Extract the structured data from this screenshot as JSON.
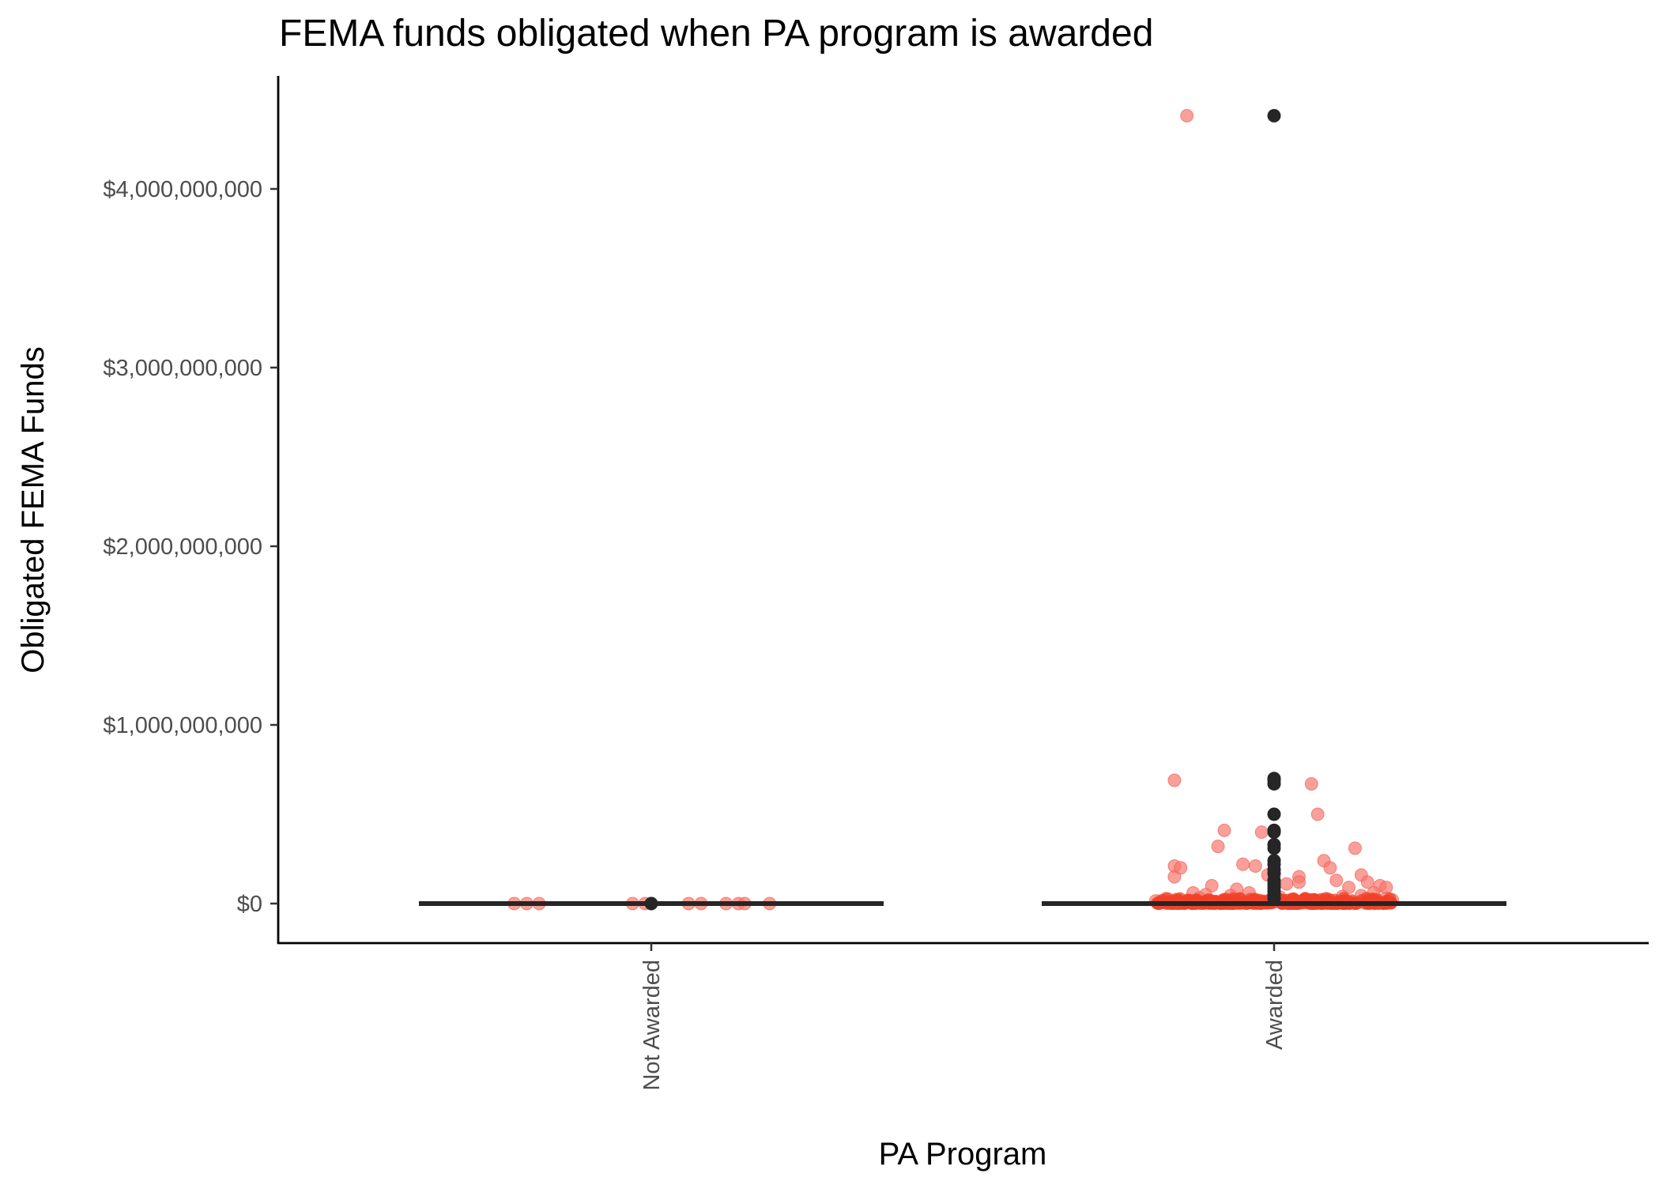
{
  "chart_data": {
    "type": "scatter",
    "title": "FEMA funds obligated when PA program is awarded",
    "xlabel": "PA Program",
    "ylabel": "Obligated FEMA Funds",
    "categories": [
      "Not Awarded",
      "Awarded"
    ],
    "ylim": [
      -210000000,
      4630000000
    ],
    "yticks": [
      0,
      1000000000,
      2000000000,
      3000000000,
      4000000000
    ],
    "ytick_labels": [
      "$0",
      "$1,000,000,000",
      "$2,000,000,000",
      "$3,000,000,000",
      "$4,000,000,000"
    ],
    "grid": false,
    "legend": "none",
    "colors": {
      "jitter_points": "#F8766D",
      "jitter_points_dense": "#F0412A",
      "boxplot": "#262626"
    },
    "boxplots": [
      {
        "category": "Not Awarded",
        "q1": 0,
        "median": 0,
        "q3": 0,
        "whisker_low": 0,
        "whisker_high": 0,
        "outliers": [
          0
        ]
      },
      {
        "category": "Awarded",
        "q1": 0,
        "median": 0,
        "q3": 0,
        "whisker_low": 0,
        "whisker_high": 0,
        "outliers": [
          4410000000,
          700000000,
          690000000,
          670000000,
          500000000,
          410000000,
          400000000,
          330000000,
          310000000,
          240000000,
          220000000,
          190000000,
          170000000,
          130000000,
          110000000,
          90000000,
          70000000,
          50000000,
          30000000
        ]
      }
    ],
    "series": [
      {
        "name": "Not Awarded",
        "x_jitter": [
          -0.22,
          -0.2,
          -0.18,
          -0.03,
          -0.01,
          0.06,
          0.08,
          0.12,
          0.14,
          0.15,
          0.19
        ],
        "values": [
          0,
          0,
          0,
          0,
          0,
          0,
          0,
          0,
          0,
          0,
          0
        ]
      },
      {
        "name": "Awarded",
        "x_jitter": [
          -0.14,
          -0.16,
          -0.16,
          -0.16,
          -0.15,
          -0.09,
          -0.08,
          -0.05,
          -0.03,
          -0.02,
          0.06,
          0.07,
          0.04,
          0.0,
          -0.01,
          0.02,
          0.04,
          0.08,
          0.09,
          0.13,
          0.14,
          0.15,
          0.17,
          0.18,
          -0.06,
          -0.1,
          -0.13,
          -0.11,
          0.1,
          0.12,
          0.16,
          0.11,
          -0.12,
          -0.07,
          0.03,
          0.05,
          -0.04,
          0.18,
          0.19,
          -0.17,
          -0.19,
          0.01,
          0.14,
          -0.05,
          0.09,
          0.16,
          -0.02,
          0.07,
          -0.08,
          0.11,
          0.17,
          -0.15,
          0.13
        ],
        "values": [
          4410000000,
          690000000,
          210000000,
          150000000,
          200000000,
          320000000,
          410000000,
          220000000,
          210000000,
          400000000,
          670000000,
          500000000,
          150000000,
          155000000,
          160000000,
          110000000,
          120000000,
          240000000,
          200000000,
          310000000,
          160000000,
          120000000,
          100000000,
          90000000,
          80000000,
          100000000,
          60000000,
          50000000,
          130000000,
          90000000,
          60000000,
          40000000,
          30000000,
          45000000,
          25000000,
          20000000,
          60000000,
          30000000,
          20000000,
          25000000,
          15000000,
          35000000,
          45000000,
          10000000,
          15000000,
          12000000,
          8000000,
          10000000,
          6000000,
          5000000,
          4000000,
          3000000,
          2000000
        ]
      }
    ],
    "awarded_dense_cluster": {
      "range": [
        0,
        30000000
      ],
      "count_estimate": 300
    }
  }
}
